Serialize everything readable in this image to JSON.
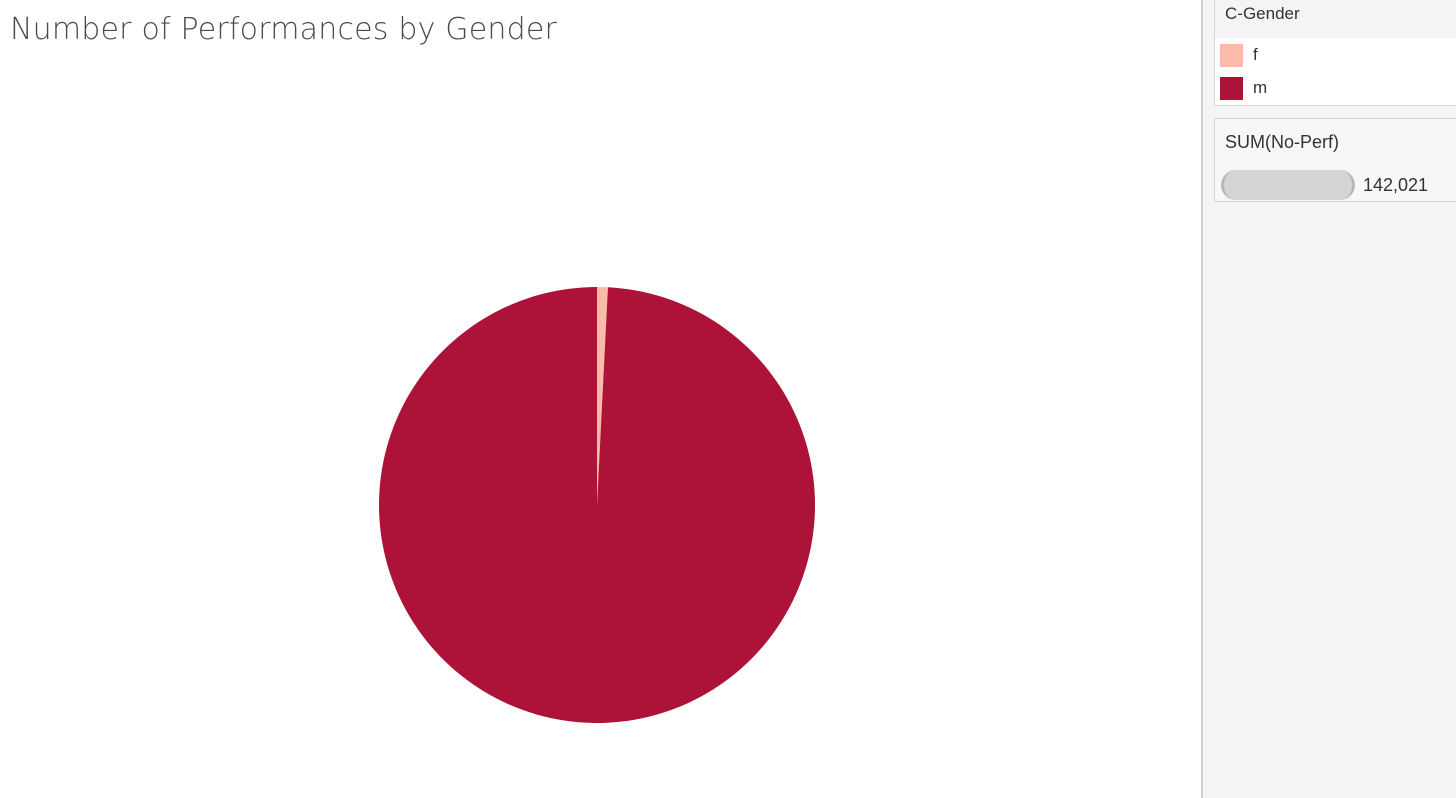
{
  "chart_data": {
    "type": "pie",
    "title": "Number of Performances by Gender",
    "categories": [
      "f",
      "m"
    ],
    "values": [
      0.008,
      0.992
    ],
    "colors": [
      "#fbbba8",
      "#ad1239"
    ],
    "start_angle_deg": -90,
    "legend": {
      "title": "C-Gender",
      "placement": "right",
      "items": [
        {
          "label": "f",
          "color": "#fbbba8"
        },
        {
          "label": "m",
          "color": "#ad1239"
        }
      ]
    },
    "size_legend": {
      "title": "SUM(No-Perf)",
      "value_label": "142,021"
    }
  }
}
